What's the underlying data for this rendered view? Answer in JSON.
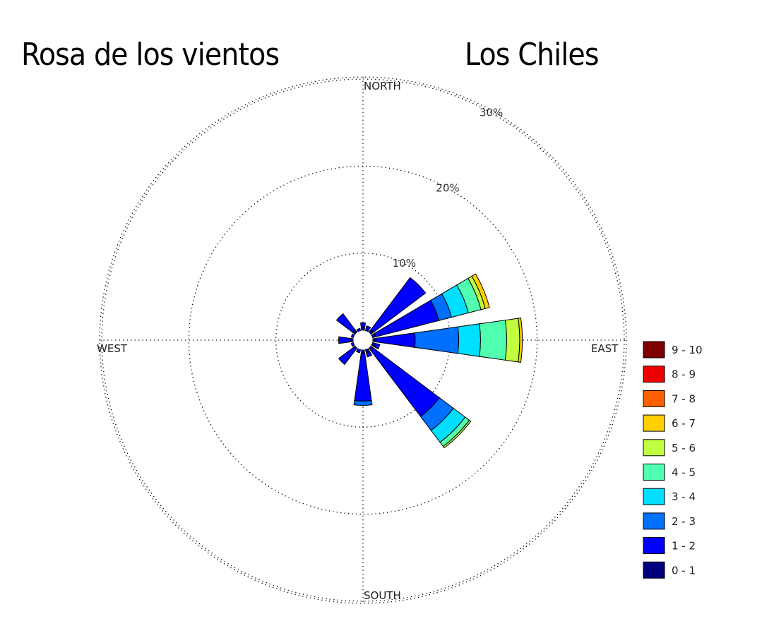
{
  "header": {
    "title": "Rosa de los vientos",
    "station": "Los Chiles"
  },
  "chart_data": {
    "type": "windrose",
    "title": "Rosa de los vientos",
    "subtitle": "Los Chiles",
    "directions": [
      "N",
      "NNE",
      "NE",
      "ENE",
      "E",
      "ESE",
      "SE",
      "SSE",
      "S",
      "SSW",
      "SW",
      "WSW",
      "W",
      "WNW",
      "NW",
      "NNW"
    ],
    "direction_angles_deg": [
      0,
      22.5,
      45,
      67.5,
      90,
      112.5,
      135,
      157.5,
      180,
      202.5,
      225,
      247.5,
      270,
      292.5,
      315,
      337.5
    ],
    "axis_labels": {
      "north": "NORTH",
      "south": "SOUTH",
      "east": "EAST",
      "west": "WEST"
    },
    "rings": [
      {
        "value": 10,
        "label": "10%"
      },
      {
        "value": 20,
        "label": "20%"
      },
      {
        "value": 30,
        "label": "30%"
      }
    ],
    "rmax": 30,
    "legend_position": "right",
    "bins": [
      {
        "name": "0 - 1",
        "color": "#00007f"
      },
      {
        "name": "1 - 2",
        "color": "#0000ff"
      },
      {
        "name": "2 - 3",
        "color": "#0070ff"
      },
      {
        "name": "3 - 4",
        "color": "#00dfff"
      },
      {
        "name": "4 - 5",
        "color": "#50ffaf"
      },
      {
        "name": "5 - 6",
        "color": "#bfff3f"
      },
      {
        "name": "6 - 7",
        "color": "#ffcf00"
      },
      {
        "name": "7 - 8",
        "color": "#ff6000"
      },
      {
        "name": "8 - 9",
        "color": "#ef0000"
      },
      {
        "name": "9 - 10",
        "color": "#7f0000"
      }
    ],
    "sectors": [
      {
        "dir": "N",
        "cumulative": [
          1.5,
          2.0
        ]
      },
      {
        "dir": "NNE",
        "cumulative": [
          1.2,
          1.7
        ]
      },
      {
        "dir": "NE",
        "cumulative": [
          1.5,
          9.0
        ]
      },
      {
        "dir": "ENE",
        "cumulative": [
          1.5,
          9.0,
          10.5,
          12.5,
          14.0,
          14.5,
          15.0
        ]
      },
      {
        "dir": "E",
        "cumulative": [
          1.5,
          6.0,
          11.0,
          13.5,
          16.5,
          18.0,
          18.3
        ]
      },
      {
        "dir": "ESE",
        "cumulative": [
          1.5,
          2.0
        ]
      },
      {
        "dir": "SE",
        "cumulative": [
          1.5,
          11.0,
          13.0,
          14.7,
          15.3,
          15.5
        ]
      },
      {
        "dir": "SSE",
        "cumulative": [
          1.5,
          2.0
        ]
      },
      {
        "dir": "S",
        "cumulative": [
          1.5,
          7.0,
          7.5
        ]
      },
      {
        "dir": "SSW",
        "cumulative": [
          1.0,
          1.5
        ]
      },
      {
        "dir": "SW",
        "cumulative": [
          1.3,
          3.5
        ]
      },
      {
        "dir": "WSW",
        "cumulative": [
          1.0,
          1.4
        ]
      },
      {
        "dir": "W",
        "cumulative": [
          1.5,
          2.8
        ]
      },
      {
        "dir": "WNW",
        "cumulative": [
          1.0,
          1.4
        ]
      },
      {
        "dir": "NW",
        "cumulative": [
          1.5,
          3.8
        ]
      },
      {
        "dir": "NNW",
        "cumulative": [
          1.0,
          1.4
        ]
      }
    ],
    "sector_width_deg": 16
  }
}
